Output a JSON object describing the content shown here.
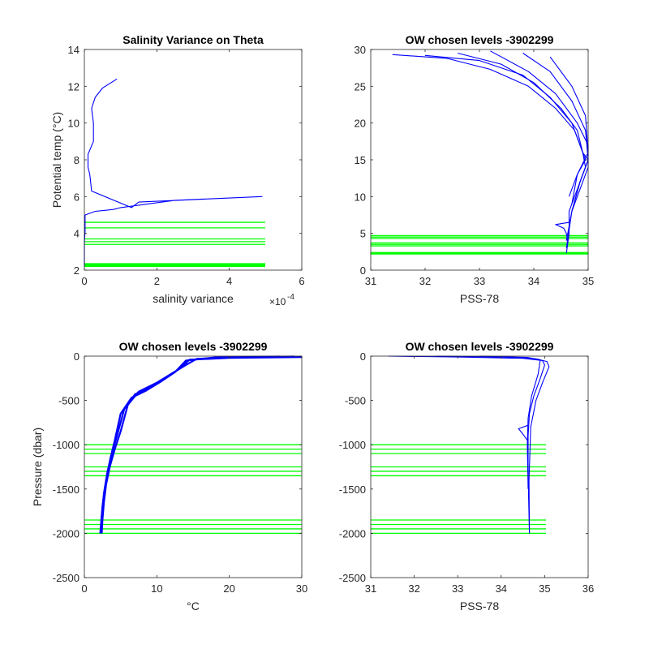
{
  "chart_data": [
    {
      "type": "line",
      "title": "Salinity Variance on Theta",
      "xlabel": "salinity variance",
      "ylabel": "Potential temp (°C)",
      "xlim": [
        0,
        6
      ],
      "ylim": [
        2,
        14
      ],
      "x_exponent_label": "×10",
      "x_exponent_power": "-4",
      "x_ticks": [
        "0",
        "2",
        "4",
        "6"
      ],
      "y_ticks": [
        "2",
        "4",
        "6",
        "8",
        "10",
        "12",
        "14"
      ],
      "line_color": "#0000ff",
      "level_color": "#00ff00",
      "grid": false,
      "series": [
        {
          "x": [
            0.0,
            0.0,
            0.02,
            0.02,
            0.02,
            0.3,
            0.8,
            1.0,
            2.5,
            4.9,
            1.5,
            1.3,
            0.2,
            0.15,
            0.1,
            0.1,
            0.25,
            0.25,
            0.2,
            0.3,
            0.5,
            0.9
          ],
          "y": [
            2.2,
            3.5,
            4.1,
            4.5,
            5.0,
            5.2,
            5.3,
            5.4,
            5.8,
            6.0,
            5.7,
            5.4,
            6.3,
            7.2,
            7.6,
            8.3,
            9.0,
            10.0,
            10.8,
            11.4,
            11.9,
            12.4
          ]
        }
      ],
      "levels": [
        2.2,
        2.25,
        2.3,
        2.35,
        3.4,
        3.55,
        3.7,
        4.3,
        4.6
      ]
    },
    {
      "type": "line",
      "title": "OW chosen levels -3902299",
      "xlabel": "PSS-78",
      "ylabel": "",
      "xlim": [
        31,
        35
      ],
      "ylim": [
        0,
        30
      ],
      "x_ticks": [
        "31",
        "32",
        "33",
        "34",
        "35"
      ],
      "y_ticks": [
        "0",
        "5",
        "10",
        "15",
        "20",
        "25",
        "30"
      ],
      "line_color": "#0000ff",
      "level_color": "#00ff00",
      "grid": false,
      "series": [
        {
          "x": [
            31.4,
            32.4,
            33.2,
            33.9,
            34.4,
            34.75,
            34.9,
            34.95,
            34.8,
            34.65,
            34.65,
            34.6
          ],
          "y": [
            29.3,
            28.8,
            27.3,
            25.0,
            22.0,
            19.0,
            16.0,
            14.0,
            11.0,
            8.0,
            5.0,
            2.3
          ]
        },
        {
          "x": [
            32.6,
            33.4,
            34.0,
            34.5,
            34.8,
            34.9,
            35.0,
            34.85,
            34.7,
            34.6
          ],
          "y": [
            29.5,
            28.0,
            25.5,
            22.0,
            19.0,
            16.0,
            15.0,
            12.0,
            8.0,
            4.0
          ]
        },
        {
          "x": [
            33.2,
            33.9,
            34.4,
            34.8,
            35.0,
            35.0,
            34.9,
            34.7,
            34.6
          ],
          "y": [
            29.8,
            27.0,
            24.0,
            20.0,
            17.0,
            14.0,
            12.0,
            8.0,
            3.0
          ]
        },
        {
          "x": [
            33.8,
            34.3,
            34.7,
            34.95,
            35.0,
            34.85,
            34.7
          ],
          "y": [
            29.5,
            27.0,
            23.0,
            19.0,
            15.0,
            12.0,
            8.0
          ]
        },
        {
          "x": [
            34.3,
            34.7,
            34.95,
            35.0,
            34.8,
            34.7
          ],
          "y": [
            29.0,
            25.0,
            21.0,
            16.0,
            13.0,
            9.0
          ]
        },
        {
          "x": [
            32.0,
            33.0,
            33.8,
            34.3,
            34.7,
            34.85,
            34.95,
            34.8,
            34.65
          ],
          "y": [
            29.2,
            28.5,
            26.5,
            23.5,
            20.0,
            17.0,
            15.0,
            13.0,
            10.0
          ]
        },
        {
          "x": [
            34.65,
            34.4,
            34.55,
            34.6,
            34.62
          ],
          "y": [
            6.5,
            6.2,
            5.7,
            5.0,
            4.0
          ]
        }
      ],
      "levels": [
        2.2,
        2.3,
        2.4,
        3.3,
        3.5,
        3.7,
        4.3,
        4.5,
        4.7
      ]
    },
    {
      "type": "line",
      "title": "OW chosen levels -3902299",
      "xlabel": "°C",
      "ylabel": "Pressure (dbar)",
      "xlim": [
        0,
        30
      ],
      "ylim": [
        -2500,
        0
      ],
      "x_ticks": [
        "0",
        "10",
        "20",
        "30"
      ],
      "y_ticks": [
        "-2500",
        "-2000",
        "-1500",
        "-1000",
        "-500",
        "0"
      ],
      "line_color": "#0000ff",
      "level_color": "#00ff00",
      "grid": false,
      "series": [
        {
          "x": [
            30.0,
            20.0,
            14.5,
            13.0,
            11.0,
            9.0,
            7.0,
            5.5,
            4.5,
            3.8,
            3.2,
            2.8,
            2.5,
            2.3,
            2.2
          ],
          "y": [
            -10,
            -20,
            -40,
            -150,
            -250,
            -350,
            -430,
            -600,
            -900,
            -1100,
            -1300,
            -1500,
            -1700,
            -1900,
            -2000
          ]
        },
        {
          "x": [
            29.0,
            20.0,
            15.5,
            14.0,
            12.0,
            10.0,
            7.5,
            6.0,
            5.0,
            4.2,
            3.5,
            3.0,
            2.7,
            2.5,
            2.4
          ],
          "y": [
            -5,
            -15,
            -30,
            -100,
            -200,
            -300,
            -400,
            -550,
            -850,
            -1050,
            -1250,
            -1450,
            -1650,
            -1850,
            -2000
          ]
        },
        {
          "x": [
            27.0,
            18.0,
            14.0,
            12.5,
            10.5,
            8.5,
            6.5,
            5.0,
            4.2,
            3.6,
            3.1,
            2.7,
            2.4,
            2.2
          ],
          "y": [
            -5,
            -15,
            -50,
            -180,
            -290,
            -390,
            -470,
            -650,
            -950,
            -1150,
            -1350,
            -1550,
            -1800,
            -2000
          ]
        }
      ],
      "levels": [
        -1000,
        -1050,
        -1100,
        -1250,
        -1300,
        -1350,
        -1850,
        -1900,
        -1950,
        -2000
      ]
    },
    {
      "type": "line",
      "title": "OW chosen levels -3902299",
      "xlabel": "PSS-78",
      "ylabel": "",
      "xlim": [
        31,
        36
      ],
      "ylim": [
        -2500,
        0
      ],
      "x_ticks": [
        "31",
        "32",
        "33",
        "34",
        "35",
        "36"
      ],
      "y_ticks": [
        "-2500",
        "-2000",
        "-1500",
        "-1000",
        "-500",
        "0"
      ],
      "line_color": "#0000ff",
      "level_color": "#00ff00",
      "grid": false,
      "series": [
        {
          "x": [
            31.4,
            33.0,
            34.5,
            34.95,
            35.0,
            34.9,
            34.75,
            34.65,
            34.62,
            34.62,
            34.63,
            34.65
          ],
          "y": [
            0,
            -10,
            -25,
            -50,
            -100,
            -250,
            -450,
            -650,
            -900,
            -1200,
            -1600,
            -2000
          ]
        },
        {
          "x": [
            32.5,
            34.0,
            34.8,
            35.05,
            35.1,
            34.95,
            34.8,
            34.68,
            34.64,
            34.65
          ],
          "y": [
            0,
            -10,
            -30,
            -60,
            -120,
            -300,
            -500,
            -800,
            -1400,
            -2000
          ]
        },
        {
          "x": [
            33.5,
            34.6,
            34.9,
            34.85,
            34.7,
            34.62,
            34.6,
            34.62
          ],
          "y": [
            0,
            -15,
            -40,
            -200,
            -450,
            -700,
            -1000,
            -1500
          ]
        },
        {
          "x": [
            34.62,
            34.4,
            34.5,
            34.6
          ],
          "y": [
            -780,
            -820,
            -880,
            -950
          ]
        }
      ],
      "levels": [
        -1000,
        -1050,
        -1100,
        -1250,
        -1300,
        -1350,
        -1850,
        -1900,
        -1950,
        -2000
      ]
    }
  ]
}
